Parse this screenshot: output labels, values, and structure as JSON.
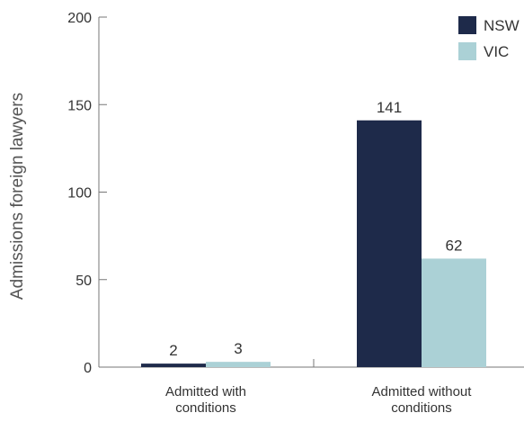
{
  "chart_data": {
    "type": "bar",
    "categories": [
      "Admitted with conditions",
      "Admitted without conditions"
    ],
    "category_label_lines": [
      [
        "Admitted with",
        "conditions"
      ],
      [
        "Admitted without",
        "conditions"
      ]
    ],
    "series": [
      {
        "name": "NSW",
        "values": [
          2,
          141
        ],
        "color": "#1e2a4a"
      },
      {
        "name": "VIC",
        "values": [
          3,
          62
        ],
        "color": "#abd1d6"
      }
    ],
    "data_labels": [
      [
        "2",
        "141"
      ],
      [
        "3",
        "62"
      ]
    ],
    "title": "",
    "xlabel": "",
    "ylabel": "Admissions foreign lawyers",
    "ylim": [
      0,
      200
    ],
    "yticks": [
      0,
      50,
      100,
      150,
      200
    ],
    "grid": false,
    "legend_position": "top-right"
  }
}
